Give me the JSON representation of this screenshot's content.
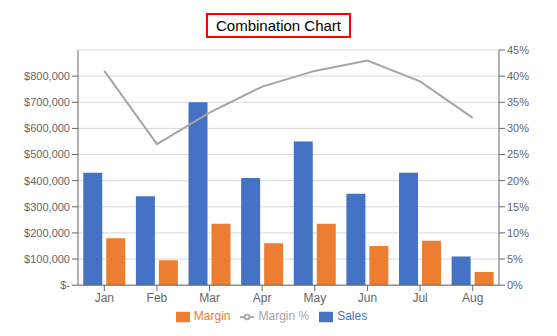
{
  "chart_data": {
    "type": "bar",
    "title": "Combination Chart",
    "categories": [
      "Jan",
      "Feb",
      "Mar",
      "Apr",
      "May",
      "Jun",
      "Jul",
      "Aug"
    ],
    "series": [
      {
        "name": "Sales",
        "color": "#4472C4",
        "values": [
          430000,
          340000,
          700000,
          410000,
          550000,
          350000,
          430000,
          110000
        ]
      },
      {
        "name": "Margin",
        "color": "#ED7D31",
        "values": [
          180000,
          95000,
          235000,
          160000,
          235000,
          150000,
          170000,
          50000
        ]
      },
      {
        "name": "Margin %",
        "type": "line",
        "axis": "y2",
        "marker": "none",
        "color": "#A5A5A5",
        "values": [
          0.41,
          0.27,
          0.33,
          0.38,
          0.41,
          0.43,
          0.39,
          0.32
        ]
      }
    ],
    "ylim": [
      0,
      900000
    ],
    "yticks": [
      {
        "value": 0,
        "label": "$-"
      },
      {
        "value": 100000,
        "label": "$100,000"
      },
      {
        "value": 200000,
        "label": "$200,000"
      },
      {
        "value": 300000,
        "label": "$300,000"
      },
      {
        "value": 400000,
        "label": "$400,000"
      },
      {
        "value": 500000,
        "label": "$500,000"
      },
      {
        "value": 600000,
        "label": "$600,000"
      },
      {
        "value": 700000,
        "label": "$700,000"
      },
      {
        "value": 800000,
        "label": "$800,000"
      }
    ],
    "y2lim": [
      0,
      0.45
    ],
    "y2ticks": [
      {
        "value": 0,
        "label": "0%"
      },
      {
        "value": 0.05,
        "label": "5%"
      },
      {
        "value": 0.1,
        "label": "10%"
      },
      {
        "value": 0.15,
        "label": "15%"
      },
      {
        "value": 0.2,
        "label": "20%"
      },
      {
        "value": 0.25,
        "label": "25%"
      },
      {
        "value": 0.3,
        "label": "30%"
      },
      {
        "value": 0.35,
        "label": "35%"
      },
      {
        "value": 0.4,
        "label": "40%"
      },
      {
        "value": 0.45,
        "label": "45%"
      }
    ],
    "grid": true,
    "legend": "bottom"
  }
}
